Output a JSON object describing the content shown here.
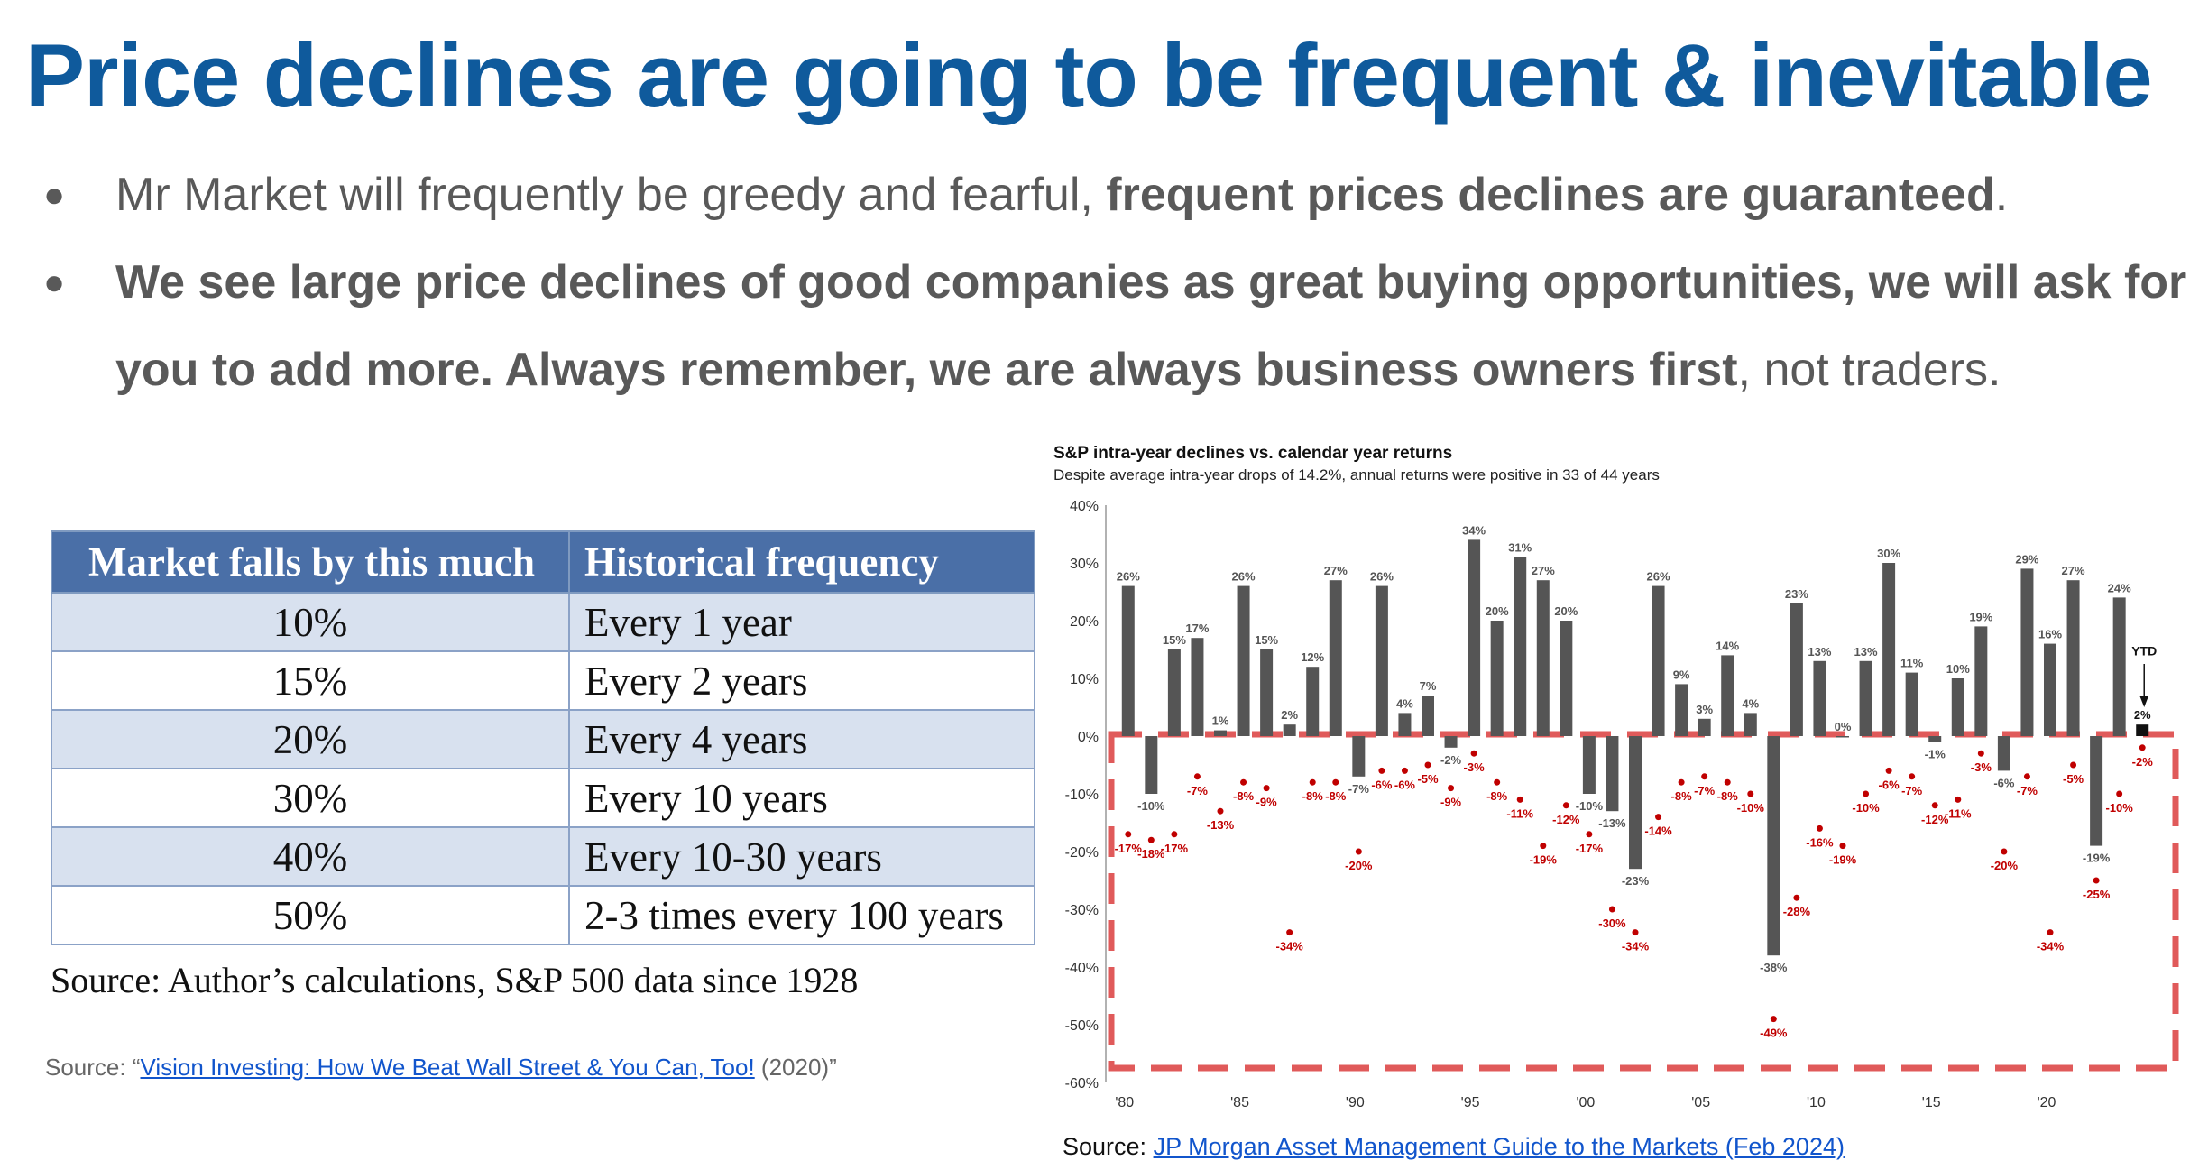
{
  "title": "Price declines are going to be frequent & inevitable",
  "bullets": [
    {
      "plain_a": "Mr Market will frequently be greedy and fearful, ",
      "bold": "frequent prices declines are guaranteed",
      "plain_b": "."
    },
    {
      "plain_a": "",
      "bold": "We see large price declines of good companies as great buying opportunities, we will ask for you to add more. Always remember, we are always business owners first",
      "plain_b": ", not traders."
    }
  ],
  "bullet_symbol": "●",
  "table": {
    "headers": [
      "Market falls by this much",
      "Historical frequency"
    ],
    "rows": [
      [
        "10%",
        "Every 1 year"
      ],
      [
        "15%",
        "Every 2 years"
      ],
      [
        "20%",
        "Every 4 years"
      ],
      [
        "30%",
        "Every 10 years"
      ],
      [
        "40%",
        "Every 10-30 years"
      ],
      [
        "50%",
        "2-3 times every 100 years"
      ]
    ],
    "source": "Source: Author’s calculations, S&P 500 data since 1928"
  },
  "source_left": {
    "prefix": "Source: “",
    "link": "Vision Investing: How We Beat Wall Street & You Can, Too!",
    "suffix": " (2020)”"
  },
  "source_right": {
    "prefix": "Source: ",
    "link": "JP Morgan Asset Management Guide to the Markets (Feb 2024)"
  },
  "colors": {
    "title": "#0f5a9c",
    "table_header": "#4a6fa7",
    "table_alt_row": "#d8e1ef",
    "bar": "#555555",
    "decline": "#c00000",
    "highlight_box": "#e05a5a",
    "link": "#1155cc"
  },
  "chart_data": {
    "type": "bar",
    "title": "S&P intra-year declines vs. calendar year returns",
    "subtitle": "Despite average intra-year drops of 14.2%, annual returns were positive in 33 of 44 years",
    "x": [
      1980,
      1981,
      1982,
      1983,
      1984,
      1985,
      1986,
      1987,
      1988,
      1989,
      1990,
      1991,
      1992,
      1993,
      1994,
      1995,
      1996,
      1997,
      1998,
      1999,
      2000,
      2001,
      2002,
      2003,
      2004,
      2005,
      2006,
      2007,
      2008,
      2009,
      2010,
      2011,
      2012,
      2013,
      2014,
      2015,
      2016,
      2017,
      2018,
      2019,
      2020,
      2021,
      2022,
      2023,
      2024
    ],
    "x_tick_labels": [
      "'80",
      "'85",
      "'90",
      "'95",
      "'00",
      "'05",
      "'10",
      "'15",
      "'20"
    ],
    "series": [
      {
        "values": [
          26,
          -10,
          15,
          17,
          1,
          26,
          15,
          2,
          12,
          27,
          -7,
          26,
          4,
          7,
          -2,
          34,
          20,
          31,
          27,
          20,
          -10,
          -13,
          -23,
          26,
          9,
          3,
          14,
          4,
          -38,
          23,
          13,
          0,
          13,
          30,
          11,
          -1,
          10,
          19,
          -6,
          29,
          16,
          27,
          -19,
          24,
          2
        ],
        "labels": [
          "26%",
          "-10%",
          "15%",
          "17%",
          "1%",
          "26%",
          "15%",
          "2%",
          "12%",
          "27%",
          "-7%",
          "26%",
          "4%",
          "7%",
          "-2%",
          "34%",
          "20%",
          "31%",
          "27%",
          "20%",
          "-10%",
          "-13%",
          "-23%",
          "26%",
          "9%",
          "3%",
          "14%",
          "4%",
          "-38%",
          "23%",
          "13%",
          "0%",
          "13%",
          "30%",
          "11%",
          "-1%",
          "10%",
          "19%",
          "-6%",
          "29%",
          "16%",
          "27%",
          "-19%",
          "24%",
          "2%"
        ]
      },
      {
        "values": [
          -17,
          -18,
          -17,
          -7,
          -13,
          -8,
          -9,
          -34,
          -8,
          -8,
          -20,
          -6,
          -6,
          -5,
          -9,
          -3,
          -8,
          -11,
          -19,
          -12,
          -17,
          -30,
          -34,
          -14,
          -8,
          -7,
          -8,
          -10,
          -49,
          -28,
          -16,
          -19,
          -10,
          -6,
          -7,
          -12,
          -11,
          -3,
          -20,
          -7,
          -34,
          -5,
          -25,
          -10,
          -2
        ],
        "labels": [
          "-17%",
          "-18%",
          "-17%",
          "-7%",
          "-13%",
          "-8%",
          "-9%",
          "-34%",
          "-8%",
          "-8%",
          "-20%",
          "-6%",
          "-6%",
          "-5%",
          "-9%",
          "-3%",
          "-8%",
          "-11%",
          "-19%",
          "-12%",
          "-17%",
          "-30%",
          "-34%",
          "-14%",
          "-8%",
          "-7%",
          "-8%",
          "-10%",
          "-49%",
          "-28%",
          "-16%",
          "-19%",
          "-10%",
          "-6%",
          "-7%",
          "-12%",
          "-11%",
          "-3%",
          "-20%",
          "-7%",
          "-34%",
          "-5%",
          "-25%",
          "-10%",
          "-2%"
        ]
      }
    ],
    "ytd_annotation": "YTD",
    "yticks": [
      "40%",
      "30%",
      "20%",
      "10%",
      "0%",
      "-10%",
      "-20%",
      "-30%",
      "-40%",
      "-50%",
      "-60%"
    ],
    "ylim": [
      -60,
      40
    ],
    "grid": false
  }
}
